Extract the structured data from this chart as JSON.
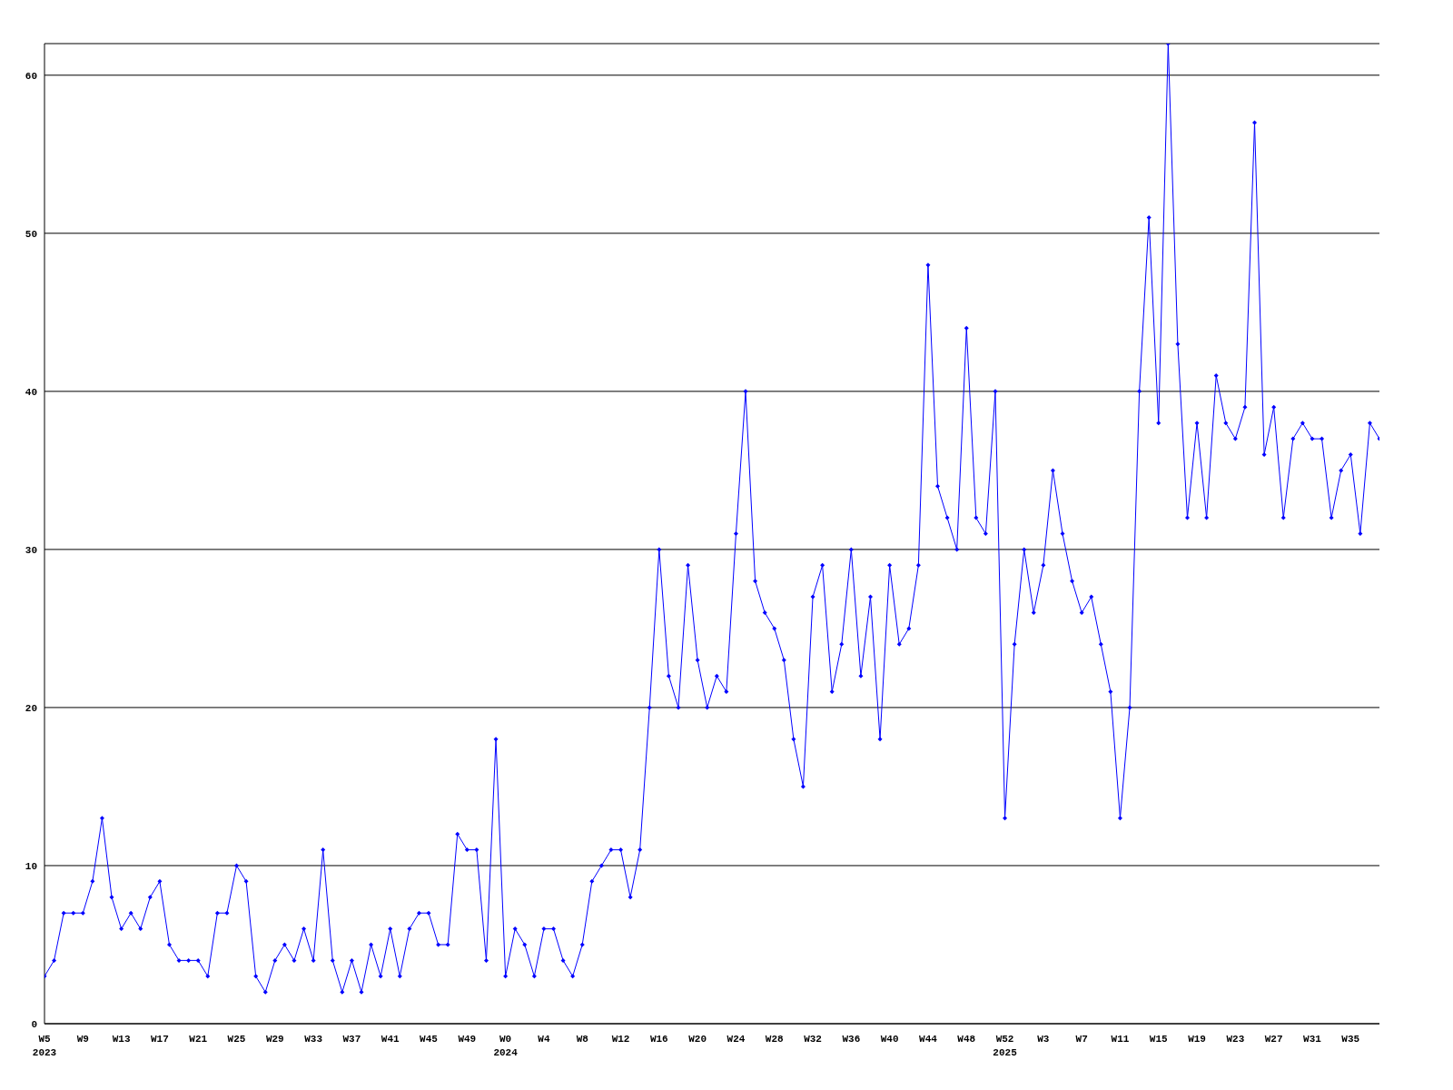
{
  "chart_data": {
    "type": "line",
    "categories": [
      "W5\n2023",
      null,
      null,
      null,
      "W9",
      null,
      null,
      null,
      "W13",
      null,
      null,
      null,
      "W17",
      null,
      null,
      null,
      "W21",
      null,
      null,
      null,
      "W25",
      null,
      null,
      null,
      "W29",
      null,
      null,
      null,
      "W33",
      null,
      null,
      null,
      "W37",
      null,
      null,
      null,
      "W41",
      null,
      null,
      null,
      "W45",
      null,
      null,
      null,
      "W49",
      null,
      null,
      null,
      "W0\n2024",
      null,
      null,
      null,
      "W4",
      null,
      null,
      null,
      "W8",
      null,
      null,
      null,
      "W12",
      null,
      null,
      null,
      "W16",
      null,
      null,
      null,
      "W20",
      null,
      null,
      null,
      "W24",
      null,
      null,
      null,
      "W28",
      null,
      null,
      null,
      "W32",
      null,
      null,
      null,
      "W36",
      null,
      null,
      null,
      "W40",
      null,
      null,
      null,
      "W44",
      null,
      null,
      null,
      "W48",
      null,
      null,
      null,
      "W52\n2025",
      null,
      null,
      null,
      "W3",
      null,
      null,
      null,
      "W7",
      null,
      null,
      null,
      "W11",
      null,
      null,
      null,
      "W15",
      null,
      null,
      null,
      "W19",
      null,
      null,
      null,
      "W23",
      null,
      null,
      null,
      "W27",
      null,
      null,
      null,
      "W31",
      null,
      null,
      null,
      "W35",
      null,
      null,
      null
    ],
    "values": [
      3,
      4,
      7,
      7,
      7,
      9,
      13,
      8,
      6,
      7,
      6,
      8,
      9,
      5,
      4,
      4,
      4,
      3,
      7,
      7,
      10,
      9,
      3,
      2,
      4,
      5,
      4,
      6,
      4,
      11,
      4,
      2,
      4,
      2,
      5,
      3,
      6,
      3,
      6,
      7,
      7,
      5,
      5,
      12,
      11,
      11,
      4,
      18,
      3,
      6,
      5,
      3,
      6,
      6,
      4,
      3,
      5,
      9,
      10,
      11,
      11,
      8,
      11,
      20,
      30,
      22,
      20,
      29,
      23,
      20,
      22,
      21,
      31,
      40,
      28,
      26,
      25,
      23,
      18,
      15,
      27,
      29,
      21,
      24,
      30,
      22,
      27,
      18,
      29,
      24,
      25,
      29,
      48,
      34,
      32,
      30,
      44,
      32,
      31,
      40,
      13,
      24,
      30,
      26,
      29,
      35,
      31,
      28,
      26,
      27,
      24,
      21,
      13,
      20,
      40,
      51,
      38,
      62,
      43,
      32,
      38,
      32,
      41,
      38,
      37,
      39,
      57,
      36,
      39,
      32,
      37,
      38,
      37,
      37,
      32,
      35,
      36,
      31,
      38,
      37
    ],
    "color": "#0000ff",
    "ylim": [
      0,
      62
    ],
    "yticks": [
      0,
      10,
      20,
      30,
      40,
      50,
      60
    ],
    "grid": "y",
    "marker": "diamond",
    "line_style": "solid"
  }
}
